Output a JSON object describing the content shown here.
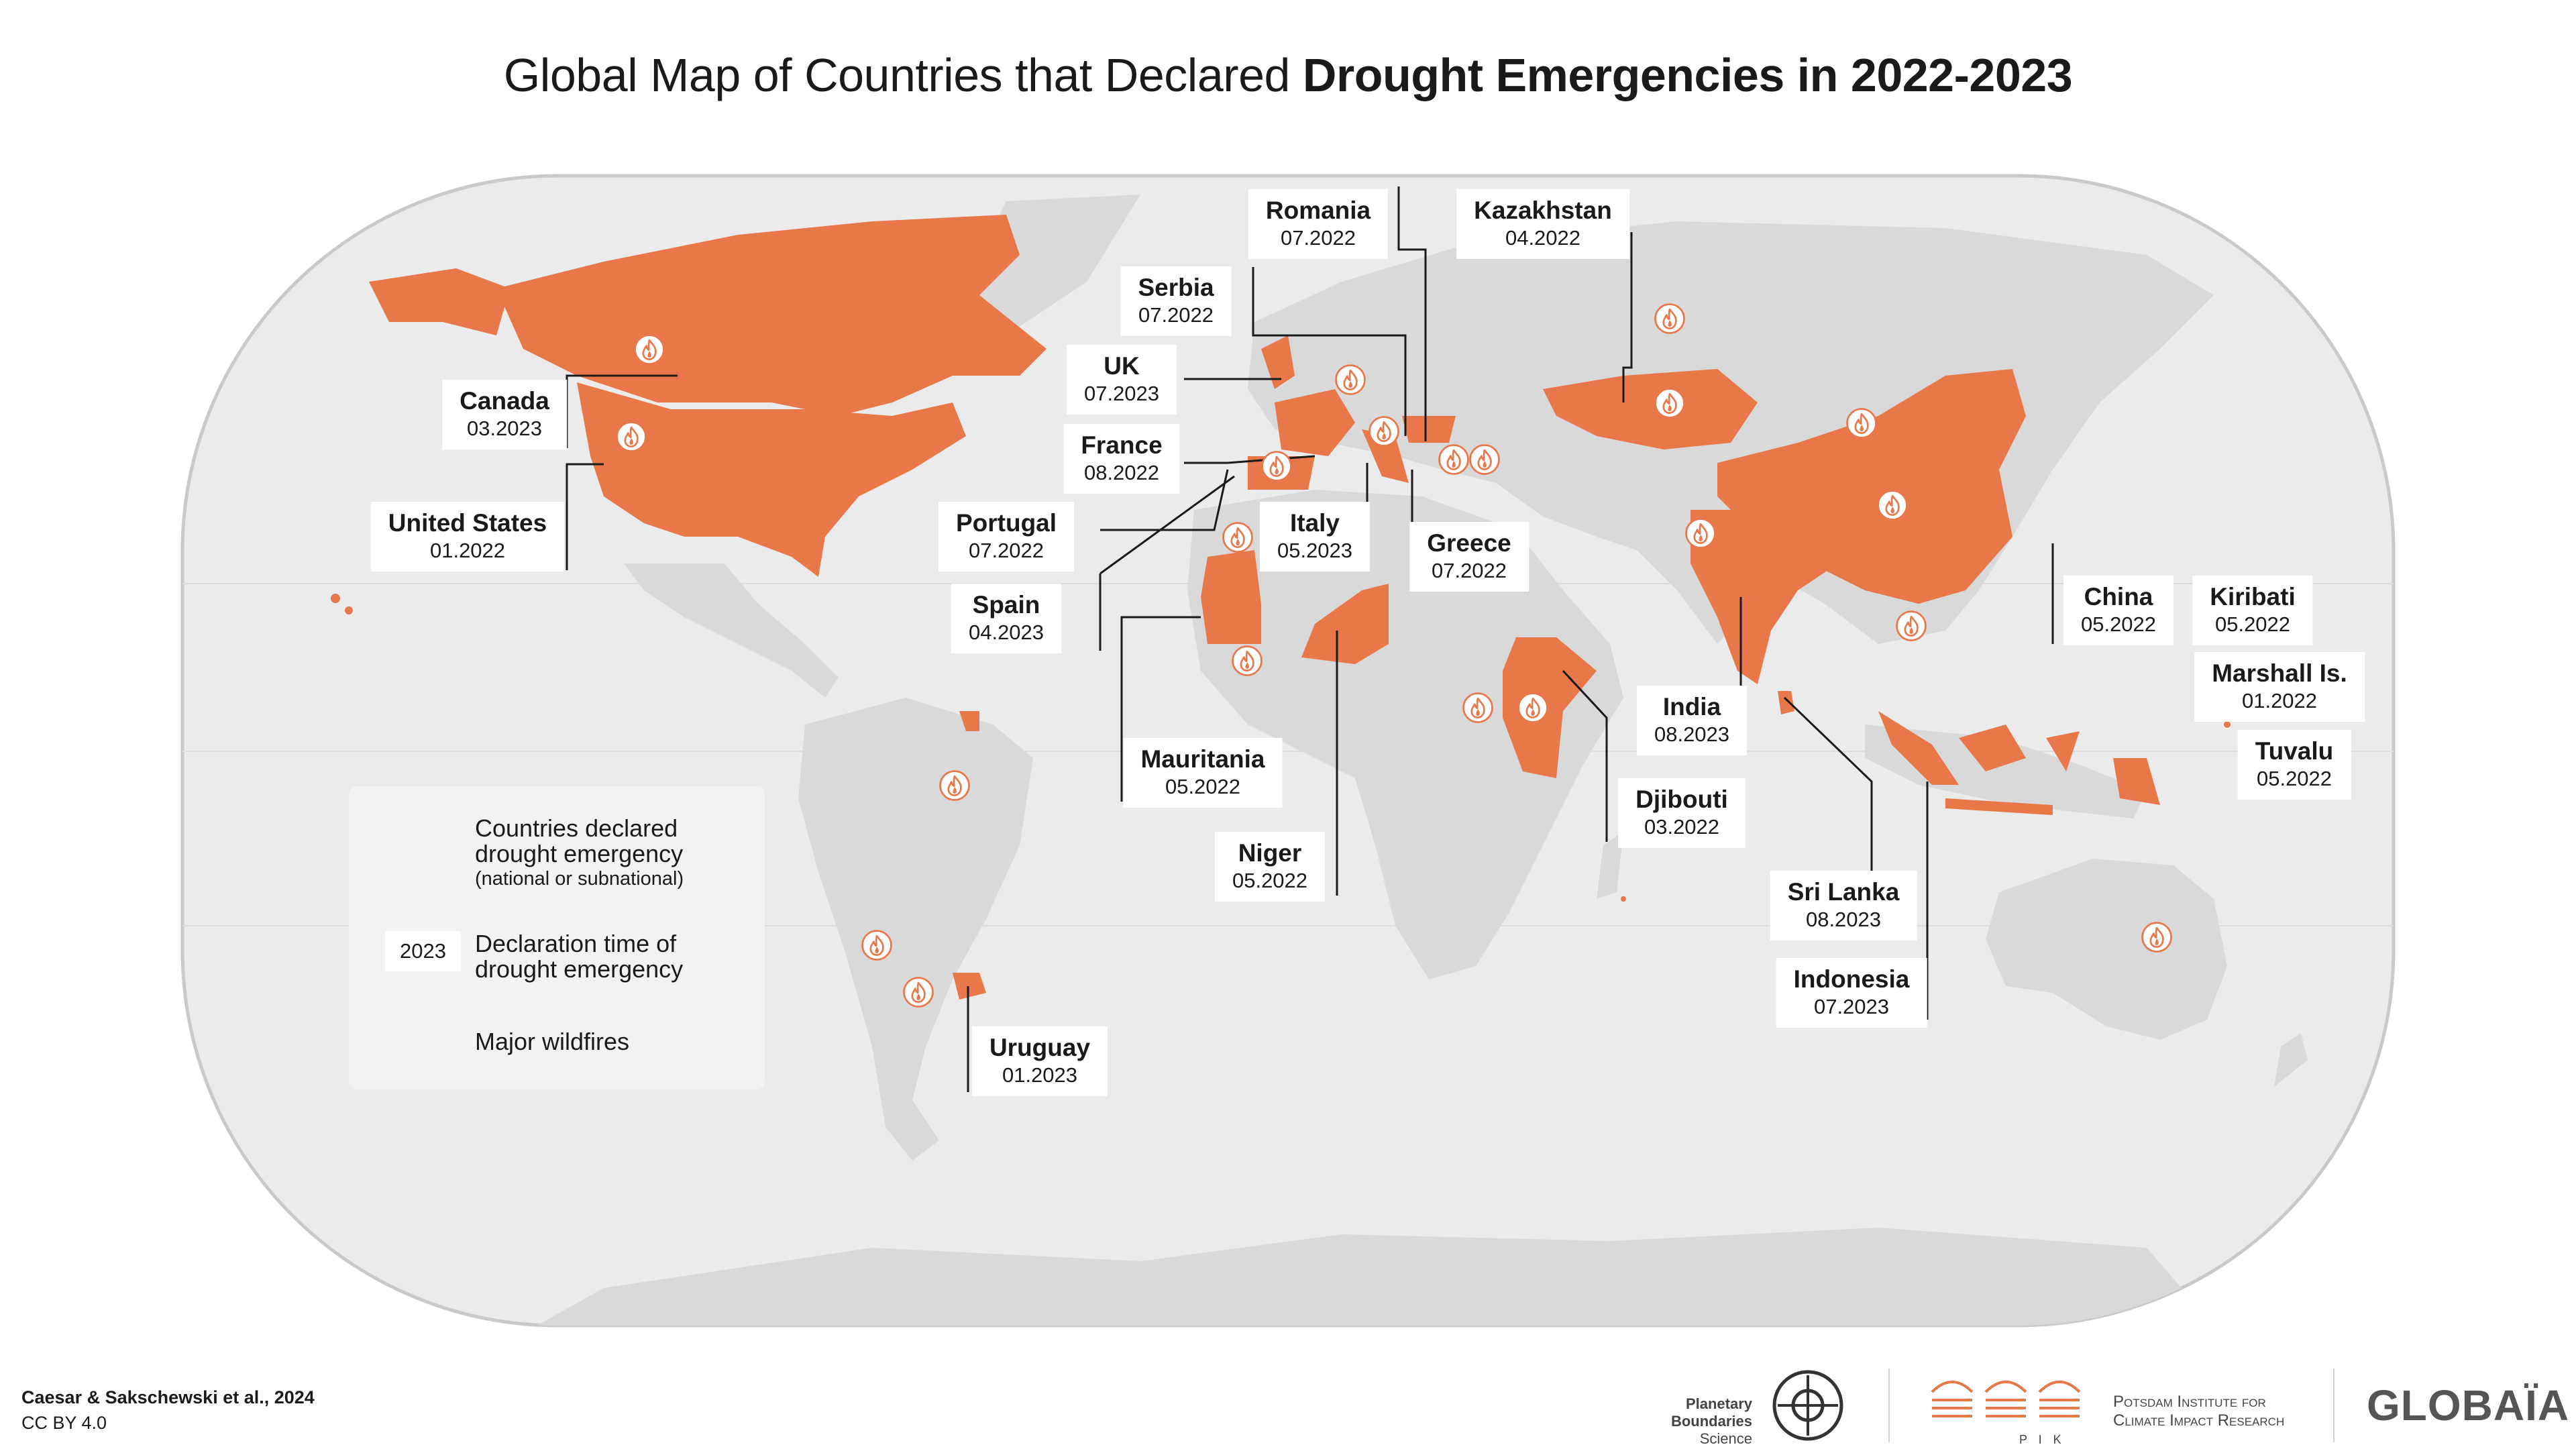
{
  "title": {
    "plain": "Global Map of Countries that Declared ",
    "bold": "Drought Emergencies in 2022-2023"
  },
  "countries": [
    {
      "name": "Canada",
      "date": "03.2023"
    },
    {
      "name": "United States",
      "date": "01.2022"
    },
    {
      "name": "Romania",
      "date": "07.2022"
    },
    {
      "name": "Kazakhstan",
      "date": "04.2022"
    },
    {
      "name": "Serbia",
      "date": "07.2022"
    },
    {
      "name": "UK",
      "date": "07.2023"
    },
    {
      "name": "France",
      "date": "08.2022"
    },
    {
      "name": "Portugal",
      "date": "07.2022"
    },
    {
      "name": "Italy",
      "date": "05.2023"
    },
    {
      "name": "Spain",
      "date": "04.2023"
    },
    {
      "name": "Greece",
      "date": "07.2022"
    },
    {
      "name": "China",
      "date": "05.2022"
    },
    {
      "name": "Kiribati",
      "date": "05.2022"
    },
    {
      "name": "Marshall Is.",
      "date": "01.2022"
    },
    {
      "name": "Tuvalu",
      "date": "05.2022"
    },
    {
      "name": "India",
      "date": "08.2023"
    },
    {
      "name": "Djibouti",
      "date": "03.2022"
    },
    {
      "name": "Mauritania",
      "date": "05.2022"
    },
    {
      "name": "Niger",
      "date": "05.2022"
    },
    {
      "name": "Sri Lanka",
      "date": "08.2023"
    },
    {
      "name": "Indonesia",
      "date": "07.2023"
    },
    {
      "name": "Uruguay",
      "date": "01.2023"
    }
  ],
  "legend": {
    "declared_line1": "Countries declared",
    "declared_line2": "drought emergency",
    "declared_sub": "(national or subnational)",
    "year_sample": "2023",
    "time_line1": "Declaration time of",
    "time_line2": "drought emergency",
    "wildfires": "Major wildfires"
  },
  "credit": {
    "authors": "Caesar & Sakschewski et al., 2024",
    "license": "CC BY 4.0"
  },
  "logos": {
    "pbs_line1": "Planetary Boundaries",
    "pbs_line2": "Science",
    "pik_line1": "Potsdam Institute for",
    "pik_line2": "Climate Impact Research",
    "pik_mark": "P I K",
    "globaia": "GLOBAÏA"
  },
  "colors": {
    "drought": "#e8774a",
    "land": "#d9d9d9",
    "ocean": "#ebebeb",
    "leader": "#1a1a1a"
  },
  "icons": {
    "wildfire": "wildfire-icon"
  }
}
